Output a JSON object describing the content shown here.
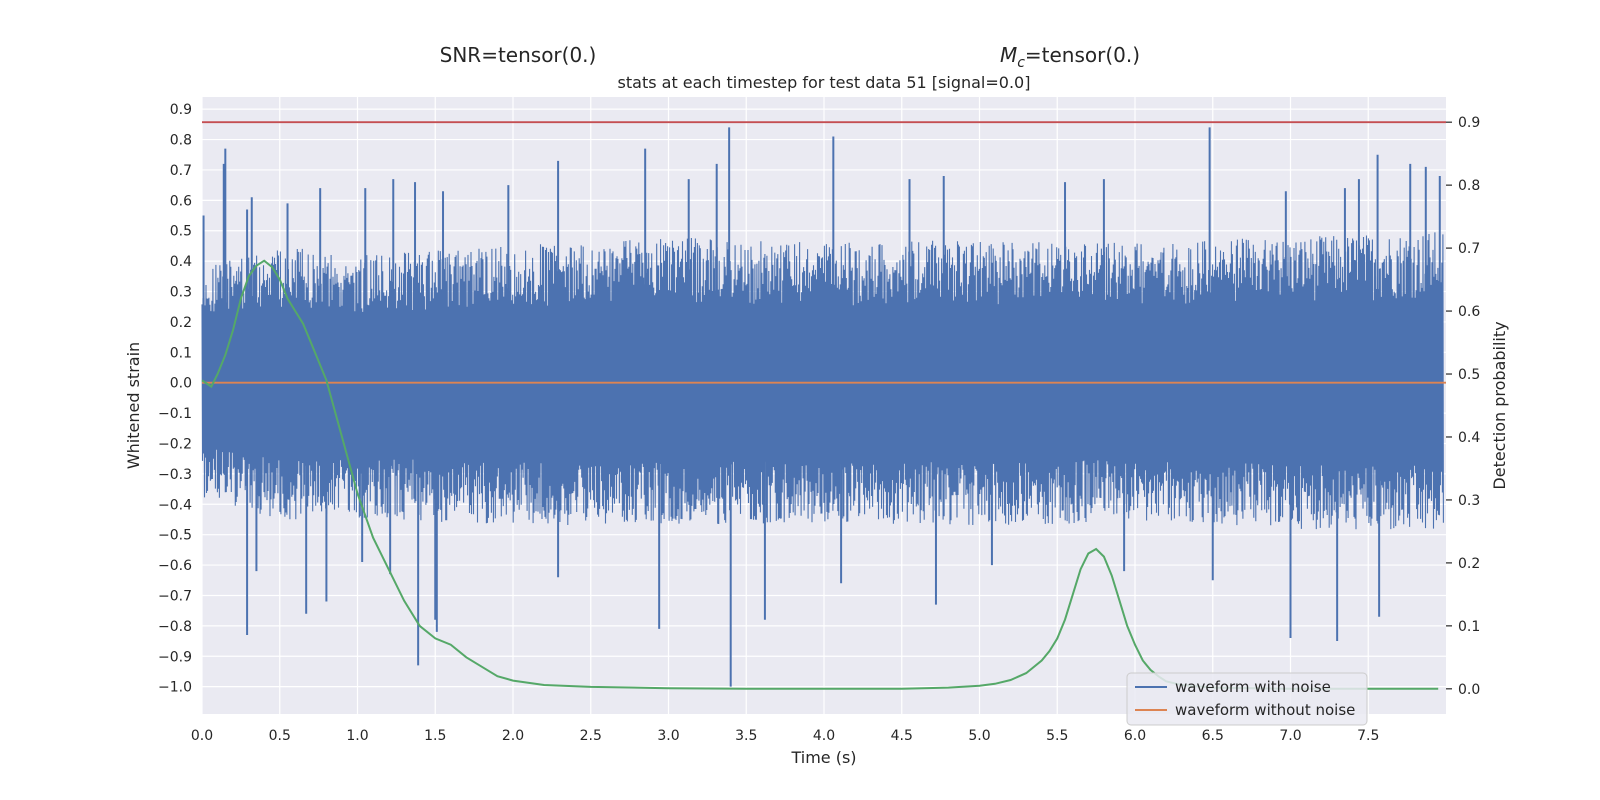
{
  "chart_data": {
    "type": "line",
    "suptitle_left_parts": [
      "SNR=tensor(0.)"
    ],
    "suptitle_right_parts": [
      "M",
      "c",
      "=tensor(0.)"
    ],
    "title": "stats at each timestep for test data 51 [signal=0.0]",
    "xlabel": "Time (s)",
    "ylabel": "Whitened strain",
    "y2label": "Detection probability",
    "xlim": [
      0.0,
      8.0
    ],
    "ylim": [
      -1.09,
      0.94
    ],
    "y2lim": [
      -0.04,
      0.94
    ],
    "xticks": [
      0.0,
      0.5,
      1.0,
      1.5,
      2.0,
      2.5,
      3.0,
      3.5,
      4.0,
      4.5,
      5.0,
      5.5,
      6.0,
      6.5,
      7.0,
      7.5
    ],
    "xtick_labels": [
      "0.0",
      "0.5",
      "1.0",
      "1.5",
      "2.0",
      "2.5",
      "3.0",
      "3.5",
      "4.0",
      "4.5",
      "5.0",
      "5.5",
      "6.0",
      "6.5",
      "7.0",
      "7.5"
    ],
    "yticks": [
      0.9,
      0.8,
      0.7,
      0.6,
      0.5,
      0.4,
      0.3,
      0.2,
      0.1,
      0.0,
      -0.1,
      -0.2,
      -0.3,
      -0.4,
      -0.5,
      -0.6,
      -0.7,
      -0.8,
      -0.9,
      -1.0
    ],
    "ytick_labels": [
      "0.9",
      "0.8",
      "0.7",
      "0.6",
      "0.5",
      "0.4",
      "0.3",
      "0.2",
      "0.1",
      "0.0",
      "−0.1",
      "−0.2",
      "−0.3",
      "−0.4",
      "−0.5",
      "−0.6",
      "−0.7",
      "−0.8",
      "−0.9",
      "−1.0"
    ],
    "y2ticks": [
      0.9,
      0.8,
      0.7,
      0.6,
      0.5,
      0.4,
      0.3,
      0.2,
      0.1,
      0.0
    ],
    "y2tick_labels": [
      "0.9",
      "0.8",
      "0.7",
      "0.6",
      "0.5",
      "0.4",
      "0.3",
      "0.2",
      "0.1",
      "0.0"
    ],
    "grid": true,
    "legend_position": "bottom-right",
    "series": [
      {
        "name": "waveform with noise",
        "color": "#4c72b0",
        "axis": "left",
        "kind": "noise",
        "envelope_upper": [
          [
            0.0,
            0.38
          ],
          [
            0.5,
            0.45
          ],
          [
            1.0,
            0.42
          ],
          [
            2.0,
            0.45
          ],
          [
            3.0,
            0.48
          ],
          [
            4.0,
            0.46
          ],
          [
            5.0,
            0.47
          ],
          [
            6.0,
            0.46
          ],
          [
            7.0,
            0.48
          ],
          [
            8.0,
            0.5
          ]
        ],
        "envelope_lower": [
          [
            0.0,
            -0.38
          ],
          [
            0.5,
            -0.45
          ],
          [
            1.0,
            -0.45
          ],
          [
            2.0,
            -0.47
          ],
          [
            3.0,
            -0.47
          ],
          [
            4.0,
            -0.46
          ],
          [
            5.0,
            -0.47
          ],
          [
            6.0,
            -0.46
          ],
          [
            7.0,
            -0.48
          ],
          [
            8.0,
            -0.5
          ]
        ],
        "peaks": [
          [
            0.01,
            0.55
          ],
          [
            0.14,
            0.72
          ],
          [
            0.15,
            0.77
          ],
          [
            0.29,
            0.57
          ],
          [
            0.32,
            0.61
          ],
          [
            0.55,
            0.59
          ],
          [
            0.76,
            0.64
          ],
          [
            1.05,
            0.64
          ],
          [
            1.23,
            0.67
          ],
          [
            1.37,
            0.66
          ],
          [
            1.55,
            0.63
          ],
          [
            1.97,
            0.65
          ],
          [
            2.29,
            0.73
          ],
          [
            2.85,
            0.77
          ],
          [
            3.13,
            0.67
          ],
          [
            3.31,
            0.72
          ],
          [
            3.39,
            0.84
          ],
          [
            4.06,
            0.81
          ],
          [
            4.55,
            0.67
          ],
          [
            4.77,
            0.68
          ],
          [
            5.55,
            0.66
          ],
          [
            5.8,
            0.67
          ],
          [
            6.48,
            0.84
          ],
          [
            6.97,
            0.63
          ],
          [
            7.35,
            0.64
          ],
          [
            7.44,
            0.67
          ],
          [
            7.56,
            0.75
          ],
          [
            7.77,
            0.72
          ],
          [
            7.87,
            0.71
          ],
          [
            7.96,
            0.68
          ]
        ],
        "troughs": [
          [
            0.29,
            -0.83
          ],
          [
            0.35,
            -0.62
          ],
          [
            0.67,
            -0.76
          ],
          [
            0.8,
            -0.72
          ],
          [
            1.03,
            -0.59
          ],
          [
            1.21,
            -0.63
          ],
          [
            1.39,
            -0.93
          ],
          [
            1.5,
            -0.78
          ],
          [
            1.51,
            -0.82
          ],
          [
            2.29,
            -0.64
          ],
          [
            2.94,
            -0.81
          ],
          [
            3.4,
            -1.0
          ],
          [
            3.62,
            -0.78
          ],
          [
            4.11,
            -0.66
          ],
          [
            4.72,
            -0.73
          ],
          [
            5.08,
            -0.6
          ],
          [
            5.93,
            -0.62
          ],
          [
            6.5,
            -0.65
          ],
          [
            7.0,
            -0.84
          ],
          [
            7.3,
            -0.85
          ],
          [
            7.57,
            -0.77
          ]
        ]
      },
      {
        "name": "waveform without noise",
        "color": "#dd8452",
        "axis": "left",
        "x": [
          0.0,
          8.0
        ],
        "y": [
          0.0,
          0.0
        ]
      },
      {
        "name": "",
        "color": "#55a868",
        "axis": "right",
        "x": [
          0.0,
          0.06,
          0.1,
          0.15,
          0.2,
          0.25,
          0.3,
          0.35,
          0.4,
          0.45,
          0.5,
          0.55,
          0.6,
          0.65,
          0.7,
          0.8,
          0.9,
          1.0,
          1.1,
          1.2,
          1.3,
          1.4,
          1.5,
          1.6,
          1.7,
          1.8,
          1.9,
          2.0,
          2.2,
          2.5,
          3.0,
          3.5,
          4.0,
          4.5,
          4.8,
          5.0,
          5.1,
          5.2,
          5.3,
          5.4,
          5.45,
          5.5,
          5.55,
          5.6,
          5.65,
          5.7,
          5.75,
          5.8,
          5.85,
          5.9,
          5.95,
          6.0,
          6.05,
          6.1,
          6.15,
          6.2,
          6.3,
          6.5,
          7.0,
          7.5,
          7.95
        ],
        "y": [
          0.49,
          0.48,
          0.5,
          0.53,
          0.57,
          0.62,
          0.655,
          0.672,
          0.68,
          0.67,
          0.65,
          0.62,
          0.6,
          0.58,
          0.55,
          0.49,
          0.4,
          0.31,
          0.24,
          0.19,
          0.14,
          0.1,
          0.08,
          0.07,
          0.05,
          0.035,
          0.02,
          0.013,
          0.006,
          0.003,
          0.001,
          0.0,
          0.0,
          0.0,
          0.002,
          0.005,
          0.008,
          0.014,
          0.025,
          0.045,
          0.06,
          0.08,
          0.11,
          0.15,
          0.19,
          0.215,
          0.222,
          0.21,
          0.18,
          0.14,
          0.1,
          0.07,
          0.045,
          0.03,
          0.02,
          0.012,
          0.006,
          0.002,
          0.0,
          0.0,
          0.0
        ]
      },
      {
        "name": "",
        "color": "#c44e52",
        "axis": "right",
        "x": [
          0.0,
          8.0
        ],
        "y": [
          0.9,
          0.9
        ]
      }
    ],
    "legend": [
      {
        "label": "waveform with noise",
        "color": "#4c72b0"
      },
      {
        "label": "waveform without noise",
        "color": "#dd8452"
      }
    ],
    "colors": {
      "plot_bg": "#eaeaf2",
      "grid": "#ffffff",
      "text": "#262626"
    }
  }
}
